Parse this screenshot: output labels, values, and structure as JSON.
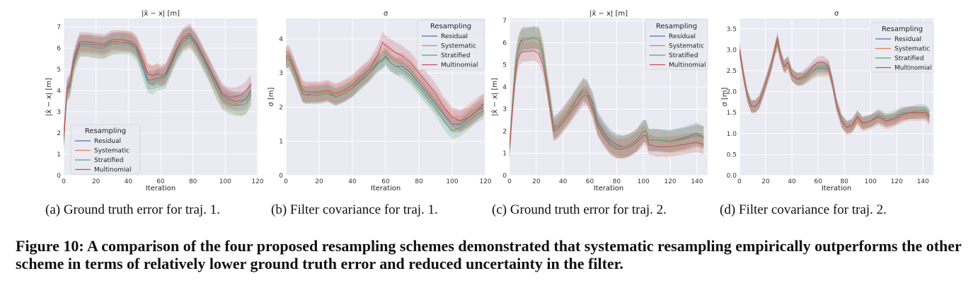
{
  "figure": {
    "label": "Figure 10",
    "caption_text": ": A comparison of the four proposed resampling schemes demonstrated that systematic resampling empirically outperforms the other scheme in terms of relatively lower ground truth error and reduced uncertainty in the filter."
  },
  "subcaptions": [
    "(a) Ground truth error for traj. 1.",
    "(b) Filter covariance for traj. 1.",
    "(c) Ground truth error for traj. 2.",
    "(d) Filter covariance for traj. 2."
  ],
  "colors": {
    "Residual": "#4c72b0",
    "Systematic": "#dd8452",
    "Stratified": "#55a868",
    "Multinomial": "#c44e52",
    "plot_bg": "#eaeaf2",
    "grid": "#ffffff"
  },
  "chart_data": [
    {
      "type": "line",
      "title": "|x̂ − x| [m]",
      "xlabel": "Iteration",
      "ylabel": "|x̂ − x| [m]",
      "xlim": [
        0,
        120
      ],
      "ylim": [
        0,
        7.4
      ],
      "xticks": [
        0,
        20,
        40,
        60,
        80,
        100,
        120
      ],
      "yticks": [
        0,
        1,
        2,
        3,
        4,
        5,
        6,
        7
      ],
      "grid": true,
      "legend": {
        "title": "Resampling",
        "placement": "lower-left"
      },
      "x": [
        0,
        2,
        4,
        6,
        8,
        10,
        15,
        20,
        25,
        30,
        35,
        40,
        42,
        45,
        48,
        50,
        52,
        55,
        58,
        60,
        63,
        66,
        70,
        74,
        78,
        82,
        86,
        90,
        94,
        98,
        102,
        106,
        110,
        113,
        116
      ],
      "series": [
        {
          "name": "Residual",
          "values": [
            1.7,
            4.0,
            4.3,
            5.3,
            5.8,
            6.2,
            6.2,
            6.15,
            6.1,
            6.3,
            6.3,
            6.25,
            6.2,
            6.0,
            5.4,
            5.0,
            4.5,
            4.5,
            4.6,
            4.6,
            4.7,
            5.2,
            5.9,
            6.4,
            6.6,
            6.2,
            5.6,
            5.0,
            4.4,
            3.8,
            3.6,
            3.5,
            3.5,
            3.6,
            4.0
          ],
          "band": 0.45
        },
        {
          "name": "Systematic",
          "values": [
            1.7,
            4.0,
            4.2,
            5.1,
            5.7,
            6.1,
            6.1,
            6.05,
            6.0,
            6.2,
            6.3,
            6.3,
            6.3,
            6.1,
            5.6,
            5.3,
            4.8,
            4.7,
            4.8,
            4.7,
            4.8,
            5.3,
            6.0,
            6.4,
            6.5,
            6.1,
            5.5,
            4.9,
            4.2,
            3.7,
            3.5,
            3.4,
            3.3,
            3.4,
            3.8
          ],
          "band": 0.5
        },
        {
          "name": "Stratified",
          "values": [
            1.6,
            3.9,
            4.2,
            5.2,
            5.7,
            6.1,
            6.1,
            6.0,
            6.0,
            6.2,
            6.2,
            6.2,
            6.1,
            5.9,
            5.3,
            4.8,
            4.4,
            4.3,
            4.5,
            4.5,
            4.6,
            5.1,
            5.8,
            6.3,
            6.5,
            6.1,
            5.5,
            4.9,
            4.2,
            3.6,
            3.4,
            3.3,
            3.3,
            3.4,
            3.8
          ],
          "band": 0.5
        },
        {
          "name": "Multinomial",
          "values": [
            1.8,
            4.1,
            4.4,
            5.4,
            5.9,
            6.3,
            6.3,
            6.25,
            6.2,
            6.4,
            6.4,
            6.35,
            6.3,
            6.1,
            5.6,
            5.2,
            4.8,
            4.7,
            4.8,
            4.7,
            4.8,
            5.3,
            6.0,
            6.5,
            6.7,
            6.3,
            5.7,
            5.1,
            4.5,
            3.9,
            3.7,
            3.7,
            3.8,
            4.0,
            4.3
          ],
          "band": 0.45
        }
      ]
    },
    {
      "type": "line",
      "title": "σ",
      "xlabel": "Iteration",
      "ylabel": "σ [m]",
      "xlim": [
        0,
        120
      ],
      "ylim": [
        0,
        4.6
      ],
      "xticks": [
        0,
        20,
        40,
        60,
        80,
        100,
        120
      ],
      "yticks": [
        0,
        1,
        2,
        3,
        4
      ],
      "grid": true,
      "legend": {
        "title": "Resampling",
        "placement": "top-right"
      },
      "x": [
        0,
        2,
        5,
        8,
        10,
        12,
        15,
        20,
        25,
        30,
        35,
        40,
        45,
        50,
        55,
        58,
        60,
        63,
        66,
        70,
        75,
        80,
        85,
        90,
        95,
        100,
        105,
        110,
        115,
        119
      ],
      "series": [
        {
          "name": "Residual",
          "values": [
            3.4,
            3.4,
            3.1,
            2.7,
            2.4,
            2.35,
            2.4,
            2.4,
            2.45,
            2.3,
            2.4,
            2.55,
            2.8,
            3.0,
            3.3,
            3.4,
            3.5,
            3.3,
            3.2,
            3.2,
            3.0,
            2.7,
            2.4,
            2.1,
            1.8,
            1.5,
            1.5,
            1.7,
            1.9,
            2.0
          ],
          "band": 0.25
        },
        {
          "name": "Systematic",
          "values": [
            3.45,
            3.45,
            3.1,
            2.7,
            2.45,
            2.4,
            2.4,
            2.4,
            2.45,
            2.35,
            2.45,
            2.6,
            2.85,
            3.05,
            3.35,
            3.5,
            3.6,
            3.45,
            3.3,
            3.3,
            3.1,
            2.8,
            2.5,
            2.2,
            1.9,
            1.6,
            1.6,
            1.8,
            2.0,
            2.1
          ],
          "band": 0.3
        },
        {
          "name": "Stratified",
          "values": [
            3.4,
            3.4,
            3.05,
            2.65,
            2.4,
            2.35,
            2.35,
            2.35,
            2.4,
            2.3,
            2.4,
            2.55,
            2.75,
            3.0,
            3.25,
            3.35,
            3.45,
            3.3,
            3.2,
            3.1,
            2.9,
            2.6,
            2.3,
            2.0,
            1.6,
            1.3,
            1.4,
            1.6,
            1.8,
            1.9
          ],
          "band": 0.25
        },
        {
          "name": "Multinomial",
          "values": [
            3.5,
            3.5,
            3.15,
            2.75,
            2.5,
            2.45,
            2.45,
            2.45,
            2.5,
            2.4,
            2.5,
            2.65,
            2.9,
            3.1,
            3.5,
            3.9,
            3.8,
            3.7,
            3.6,
            3.5,
            3.3,
            3.0,
            2.7,
            2.4,
            2.0,
            1.7,
            1.6,
            1.7,
            1.9,
            2.1
          ],
          "band": 0.3
        }
      ]
    },
    {
      "type": "line",
      "title": "|x̂ − x| [m]",
      "xlabel": "Iteration",
      "ylabel": "|x̂ − x| [m]",
      "xlim": [
        0,
        148
      ],
      "ylim": [
        0,
        7.1
      ],
      "xticks": [
        0,
        20,
        40,
        60,
        80,
        100,
        120,
        140
      ],
      "yticks": [
        0,
        1,
        2,
        3,
        4,
        5,
        6,
        7
      ],
      "grid": true,
      "legend": {
        "title": "Resampling",
        "placement": "top-right"
      },
      "x": [
        0,
        2,
        4,
        6,
        8,
        10,
        14,
        18,
        22,
        25,
        28,
        30,
        33,
        36,
        40,
        45,
        50,
        55,
        58,
        62,
        66,
        70,
        75,
        80,
        85,
        90,
        95,
        100,
        102,
        104,
        110,
        120,
        130,
        140,
        145
      ],
      "series": [
        {
          "name": "Residual",
          "values": [
            1.2,
            3.0,
            4.6,
            5.6,
            6.0,
            6.2,
            6.2,
            6.25,
            6.2,
            5.5,
            4.2,
            3.4,
            2.2,
            2.3,
            2.6,
            3.0,
            3.4,
            3.9,
            3.8,
            3.3,
            2.4,
            2.0,
            1.6,
            1.4,
            1.3,
            1.4,
            1.6,
            2.0,
            2.0,
            1.6,
            1.6,
            1.55,
            1.7,
            1.9,
            1.7
          ],
          "band": 0.5
        },
        {
          "name": "Systematic",
          "values": [
            1.2,
            3.1,
            4.8,
            5.7,
            6.1,
            6.2,
            6.2,
            6.25,
            6.2,
            5.6,
            4.3,
            3.5,
            2.1,
            2.3,
            2.6,
            3.0,
            3.5,
            3.9,
            3.8,
            3.2,
            2.3,
            1.9,
            1.5,
            1.3,
            1.3,
            1.4,
            1.6,
            2.0,
            2.0,
            1.6,
            1.6,
            1.5,
            1.6,
            1.8,
            1.7
          ],
          "band": 0.5
        },
        {
          "name": "Stratified",
          "values": [
            1.2,
            3.0,
            4.7,
            5.6,
            6.0,
            6.1,
            6.15,
            6.2,
            6.1,
            5.5,
            4.2,
            3.4,
            2.1,
            2.2,
            2.5,
            2.9,
            3.4,
            3.8,
            3.7,
            3.2,
            2.3,
            1.9,
            1.5,
            1.3,
            1.3,
            1.4,
            1.6,
            2.0,
            2.0,
            1.6,
            1.6,
            1.55,
            1.65,
            1.8,
            1.75
          ],
          "band": 0.5
        },
        {
          "name": "Multinomial",
          "values": [
            1.2,
            2.8,
            4.2,
            5.2,
            5.5,
            5.6,
            5.6,
            5.65,
            5.5,
            5.0,
            4.0,
            3.2,
            2.0,
            2.1,
            2.4,
            2.8,
            3.2,
            3.6,
            3.6,
            3.0,
            2.2,
            1.8,
            1.4,
            1.2,
            1.2,
            1.3,
            1.5,
            1.8,
            1.8,
            1.4,
            1.3,
            1.3,
            1.4,
            1.5,
            1.4
          ],
          "band": 0.45
        }
      ]
    },
    {
      "type": "line",
      "title": "σ",
      "xlabel": "Iteration",
      "ylabel": "σ [m]",
      "xlim": [
        0,
        148
      ],
      "ylim": [
        0,
        3.75
      ],
      "xticks": [
        0,
        20,
        40,
        60,
        80,
        100,
        120,
        140
      ],
      "yticks": [
        0.0,
        0.5,
        1.0,
        1.5,
        2.0,
        2.5,
        3.0,
        3.5
      ],
      "grid": true,
      "legend": {
        "title": "Resampling",
        "placement": "top-right"
      },
      "x": [
        0,
        3,
        6,
        9,
        12,
        15,
        18,
        21,
        24,
        27,
        29,
        31,
        34,
        37,
        40,
        44,
        48,
        52,
        56,
        60,
        64,
        68,
        71,
        74,
        78,
        82,
        86,
        90,
        94,
        100,
        106,
        112,
        118,
        124,
        130,
        136,
        142,
        145
      ],
      "series": [
        {
          "name": "Residual",
          "values": [
            3.0,
            2.4,
            1.9,
            1.65,
            1.65,
            1.75,
            2.0,
            2.3,
            2.6,
            3.0,
            3.2,
            2.9,
            2.6,
            2.7,
            2.4,
            2.3,
            2.3,
            2.4,
            2.5,
            2.55,
            2.55,
            2.55,
            2.2,
            1.7,
            1.3,
            1.15,
            1.2,
            1.4,
            1.25,
            1.3,
            1.4,
            1.3,
            1.35,
            1.45,
            1.5,
            1.5,
            1.5,
            1.4
          ],
          "band": 0.15
        },
        {
          "name": "Systematic",
          "values": [
            3.0,
            2.4,
            1.9,
            1.65,
            1.65,
            1.75,
            2.0,
            2.3,
            2.6,
            3.0,
            3.1,
            2.9,
            2.6,
            2.6,
            2.4,
            2.3,
            2.3,
            2.35,
            2.45,
            2.5,
            2.5,
            2.5,
            2.2,
            1.7,
            1.3,
            1.1,
            1.15,
            1.35,
            1.2,
            1.25,
            1.35,
            1.25,
            1.3,
            1.4,
            1.45,
            1.45,
            1.45,
            1.35
          ],
          "band": 0.15
        },
        {
          "name": "Stratified",
          "values": [
            3.0,
            2.4,
            1.9,
            1.65,
            1.65,
            1.75,
            2.0,
            2.3,
            2.6,
            3.0,
            3.2,
            2.9,
            2.6,
            2.7,
            2.4,
            2.3,
            2.3,
            2.4,
            2.5,
            2.6,
            2.6,
            2.6,
            2.2,
            1.7,
            1.3,
            1.15,
            1.2,
            1.4,
            1.25,
            1.3,
            1.45,
            1.35,
            1.4,
            1.5,
            1.5,
            1.55,
            1.55,
            1.45
          ],
          "band": 0.15
        },
        {
          "name": "Multinomial",
          "values": [
            3.0,
            2.4,
            1.9,
            1.65,
            1.65,
            1.75,
            2.0,
            2.3,
            2.6,
            3.0,
            3.3,
            2.9,
            2.6,
            2.7,
            2.4,
            2.3,
            2.35,
            2.45,
            2.6,
            2.7,
            2.7,
            2.6,
            2.2,
            1.7,
            1.3,
            1.15,
            1.2,
            1.4,
            1.25,
            1.3,
            1.4,
            1.3,
            1.35,
            1.45,
            1.5,
            1.5,
            1.5,
            1.4
          ],
          "band": 0.15
        }
      ]
    }
  ]
}
